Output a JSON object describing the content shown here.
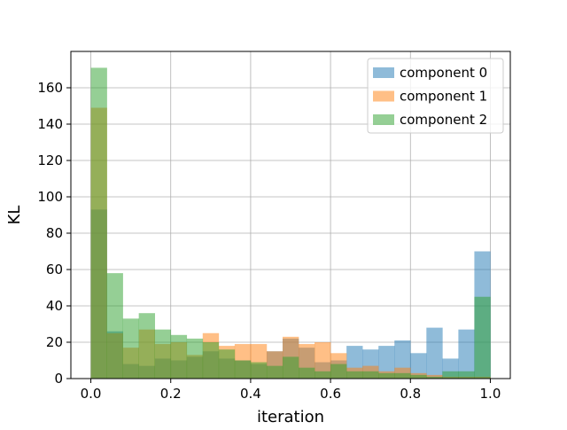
{
  "chart_data": {
    "type": "histogram",
    "xlabel": "iteration",
    "ylabel": "KL",
    "xlim": [
      -0.05,
      1.05
    ],
    "ylim": [
      0,
      180
    ],
    "x_ticks": [
      0.0,
      0.2,
      0.4,
      0.6,
      0.8,
      1.0
    ],
    "x_tick_labels": [
      "0.0",
      "0.2",
      "0.4",
      "0.6",
      "0.8",
      "1.0"
    ],
    "y_ticks": [
      0,
      20,
      40,
      60,
      80,
      100,
      120,
      140,
      160
    ],
    "y_tick_labels": [
      "0",
      "20",
      "40",
      "60",
      "80",
      "100",
      "120",
      "140",
      "160"
    ],
    "grid": true,
    "legend_position": "top-right",
    "alpha": 0.5,
    "bins": 25,
    "bin_edges": [
      0.0,
      0.04,
      0.08,
      0.12,
      0.16,
      0.2,
      0.24,
      0.28,
      0.32,
      0.36,
      0.4,
      0.44,
      0.48,
      0.52,
      0.56,
      0.6,
      0.64,
      0.68,
      0.72,
      0.76,
      0.8,
      0.84,
      0.88,
      0.92,
      0.96,
      1.0
    ],
    "series": [
      {
        "name": "component 0",
        "color": "#1f77b4",
        "values": [
          93,
          26,
          8,
          7,
          11,
          10,
          12,
          15,
          11,
          10,
          8,
          15,
          22,
          17,
          9,
          10,
          18,
          16,
          18,
          21,
          14,
          28,
          11,
          27,
          70
        ]
      },
      {
        "name": "component 1",
        "color": "#ff7f0e",
        "values": [
          149,
          25,
          17,
          27,
          19,
          20,
          13,
          25,
          18,
          19,
          19,
          15,
          23,
          19,
          20,
          14,
          6,
          7,
          4,
          6,
          3,
          2,
          1,
          1,
          1
        ]
      },
      {
        "name": "component 2",
        "color": "#2ca02c",
        "values": [
          171,
          58,
          33,
          36,
          27,
          24,
          22,
          20,
          16,
          10,
          9,
          7,
          12,
          6,
          4,
          8,
          4,
          4,
          3,
          3,
          2,
          1,
          4,
          4,
          45
        ]
      }
    ]
  }
}
